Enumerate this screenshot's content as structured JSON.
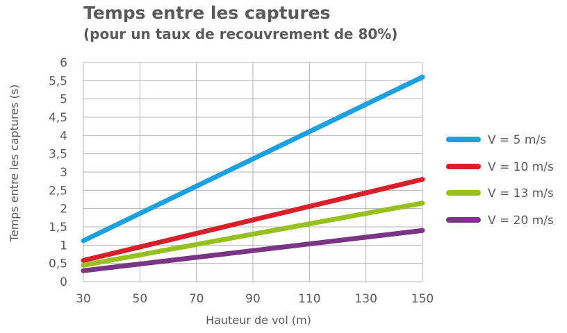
{
  "chart_data": {
    "type": "line",
    "title": "Temps entre les captures",
    "subtitle": "(pour un taux de recouvrement de 80%)",
    "xlabel": "Hauteur de vol (m)",
    "ylabel": "Temps entre les captures (s)",
    "xlim": [
      30,
      150
    ],
    "ylim": [
      0,
      6
    ],
    "x_ticks": [
      30,
      50,
      70,
      90,
      110,
      130,
      150
    ],
    "x_tick_labels": [
      "30",
      "50",
      "70",
      "90",
      "110",
      "130",
      "150"
    ],
    "y_ticks": [
      0,
      0.5,
      1,
      1.5,
      2,
      2.5,
      3,
      3.5,
      4,
      4.5,
      5,
      5.5,
      6
    ],
    "y_tick_labels": [
      "0",
      "0,5",
      "1",
      "1,5",
      "2",
      "2,5",
      "3",
      "3,5",
      "4",
      "4,5",
      "5",
      "5,5",
      "6"
    ],
    "grid": true,
    "legend_position": "right",
    "x": [
      30,
      150
    ],
    "series": [
      {
        "name": "V = 5 m/s",
        "color": "#1ba1e2",
        "values": [
          1.12,
          5.6
        ]
      },
      {
        "name": "V = 10 m/s",
        "color": "#d9202a",
        "values": [
          0.58,
          2.8
        ]
      },
      {
        "name": "V = 13 m/s",
        "color": "#97c11f",
        "values": [
          0.45,
          2.15
        ]
      },
      {
        "name": "V = 20 m/s",
        "color": "#7b3585",
        "values": [
          0.3,
          1.4
        ]
      }
    ]
  }
}
